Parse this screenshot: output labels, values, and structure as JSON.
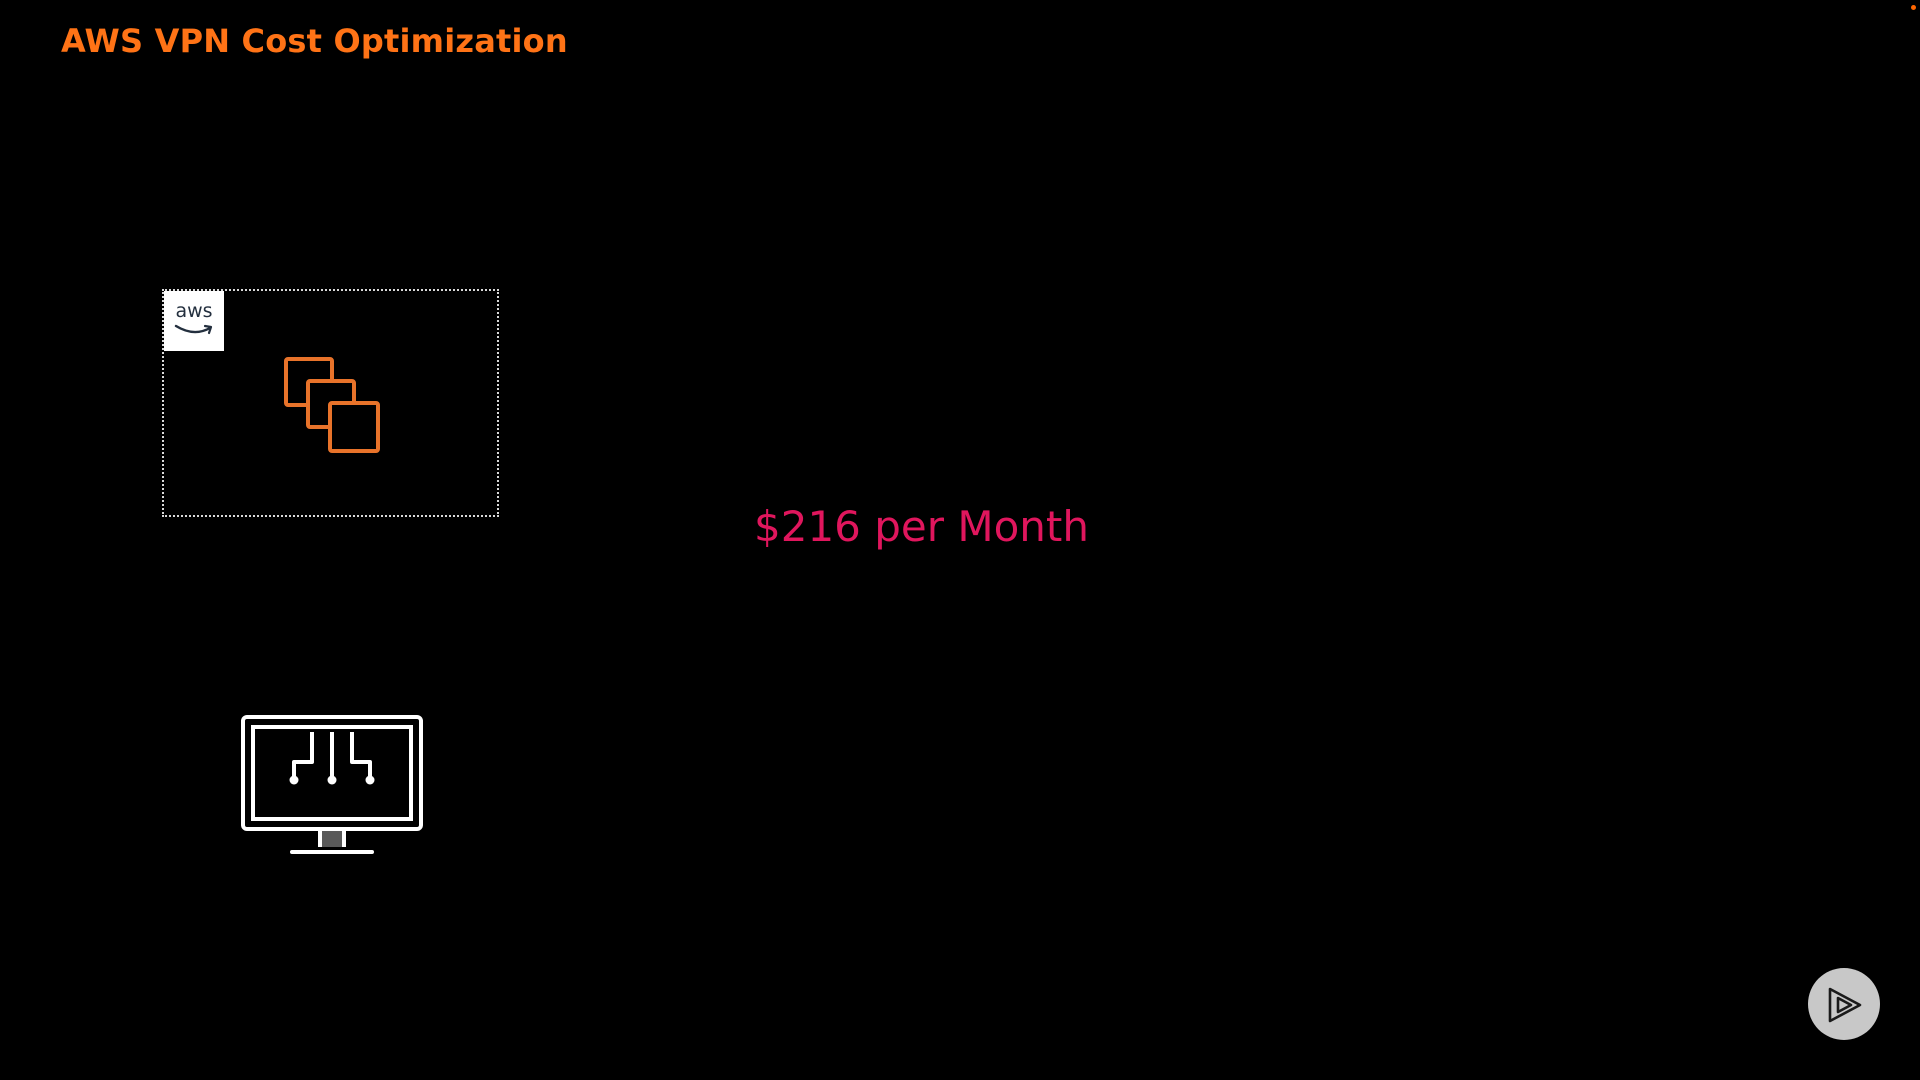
{
  "slide": {
    "title": "AWS VPN Cost Optimization",
    "cost_text": "$216 per Month",
    "aws_badge_text": "aws"
  },
  "icons": {
    "cloud_group": "aws-cloud-group-icon",
    "instances": "ec2-instances-icon",
    "client": "client-computer-icon",
    "player": "pluralsight-play-icon"
  },
  "colors": {
    "title": "#ff7316",
    "cost": "#e0165d",
    "instances": "#e8732a",
    "background": "#000000",
    "accent_dot": "#ff6600"
  }
}
